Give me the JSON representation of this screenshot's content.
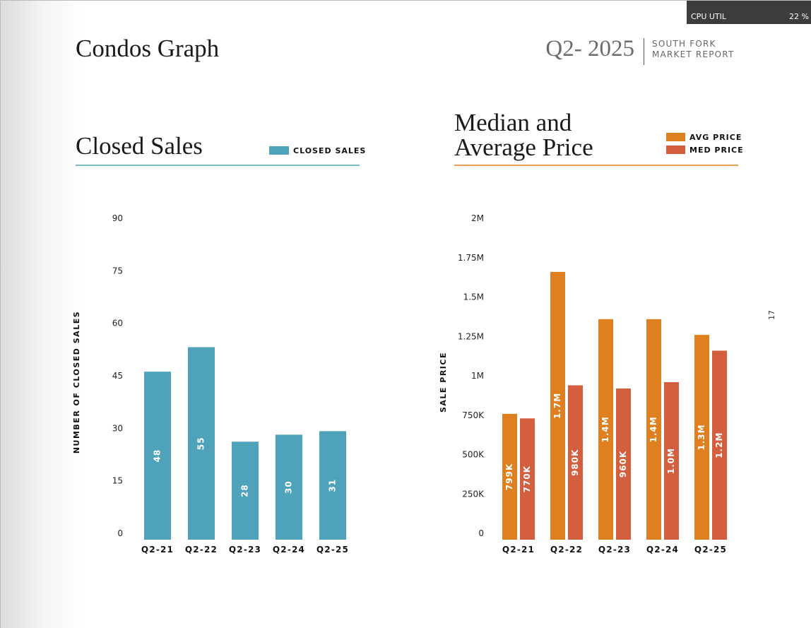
{
  "header": {
    "title": "Condos Graph",
    "period": "Q2- 2025",
    "report": [
      "SOUTH FORK",
      "MARKET REPORT"
    ]
  },
  "overlay": {
    "label": "CPU UTIL",
    "value": "22 %"
  },
  "page_number": "17",
  "chart_data": [
    {
      "type": "bar",
      "title": "Closed Sales",
      "y_label": "NUMBER OF CLOSED SALES",
      "categories": [
        "Q2-21",
        "Q2-22",
        "Q2-23",
        "Q2-24",
        "Q2-25"
      ],
      "series": [
        {
          "name": "CLOSED SALES",
          "color": "#4ea3ba",
          "values": [
            48,
            55,
            28,
            30,
            31
          ]
        }
      ],
      "ylim": [
        0,
        90
      ],
      "yticks": [
        0,
        15,
        30,
        45,
        60,
        75,
        90
      ],
      "accent": "#4ea3ba"
    },
    {
      "type": "bar",
      "title": "Median and Average Price",
      "y_label": "SALE PRICE",
      "categories": [
        "Q2-21",
        "Q2-22",
        "Q2-23",
        "Q2-24",
        "Q2-25"
      ],
      "series": [
        {
          "name": "AVG PRICE",
          "color": "#e07f1f",
          "values": [
            799000,
            1700000,
            1400000,
            1400000,
            1300000
          ],
          "value_labels": [
            "799K",
            "1.7M",
            "1.4M",
            "1.4M",
            "1.3M"
          ]
        },
        {
          "name": "MED PRICE",
          "color": "#d35f3f",
          "values": [
            770000,
            980000,
            960000,
            1000000,
            1200000
          ],
          "value_labels": [
            "770K",
            "980K",
            "960K",
            "1.0M",
            "1.2M"
          ]
        }
      ],
      "ylim": [
        0,
        2000000
      ],
      "yticks": [
        0,
        {
          "value": 250000,
          "label": "250K"
        },
        {
          "value": 500000,
          "label": "500K"
        },
        {
          "value": 750000,
          "label": "750K"
        },
        {
          "value": 1000000,
          "label": "1M"
        },
        {
          "value": 1250000,
          "label": "1.25M"
        },
        {
          "value": 1500000,
          "label": "1.5M"
        },
        {
          "value": 1750000,
          "label": "1.75M"
        },
        {
          "value": 2000000,
          "label": "2M"
        }
      ],
      "accent": "#e07f1f"
    }
  ]
}
